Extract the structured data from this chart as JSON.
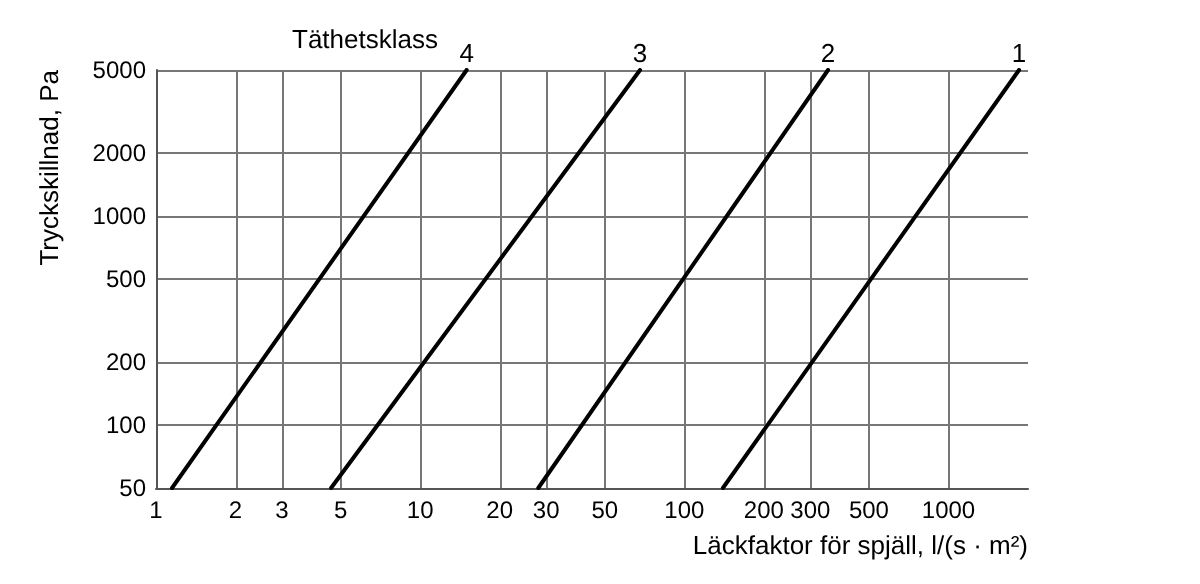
{
  "chart_data": {
    "type": "line",
    "xlabel": "Läckfaktor för spjäll, l/(s · m²)",
    "ylabel": "Tryckskillnad, Pa",
    "annotations": [
      "Täthetsklass"
    ],
    "log": "xy",
    "grid": true,
    "legend": false,
    "marker": "none",
    "line_style": "solid",
    "xlim": [
      1,
      2000
    ],
    "xticks": [
      1,
      2,
      3,
      5,
      10,
      20,
      30,
      50,
      100,
      200,
      300,
      500,
      1000
    ],
    "ylim": [
      50,
      5000
    ],
    "yticks": [
      50,
      100,
      200,
      500,
      1000,
      2000,
      5000
    ],
    "series": [
      {
        "name": "4",
        "color": "#000000",
        "x": [
          1.15,
          15
        ],
        "values": [
          50,
          5000
        ]
      },
      {
        "name": "3",
        "color": "#000000",
        "x": [
          4.6,
          68
        ],
        "values": [
          50,
          5000
        ]
      },
      {
        "name": "2",
        "color": "#000000",
        "x": [
          28,
          350
        ],
        "values": [
          50,
          5000
        ]
      },
      {
        "name": "1",
        "color": "#000000",
        "x": [
          140,
          1850
        ],
        "values": [
          50,
          5000
        ]
      }
    ]
  }
}
